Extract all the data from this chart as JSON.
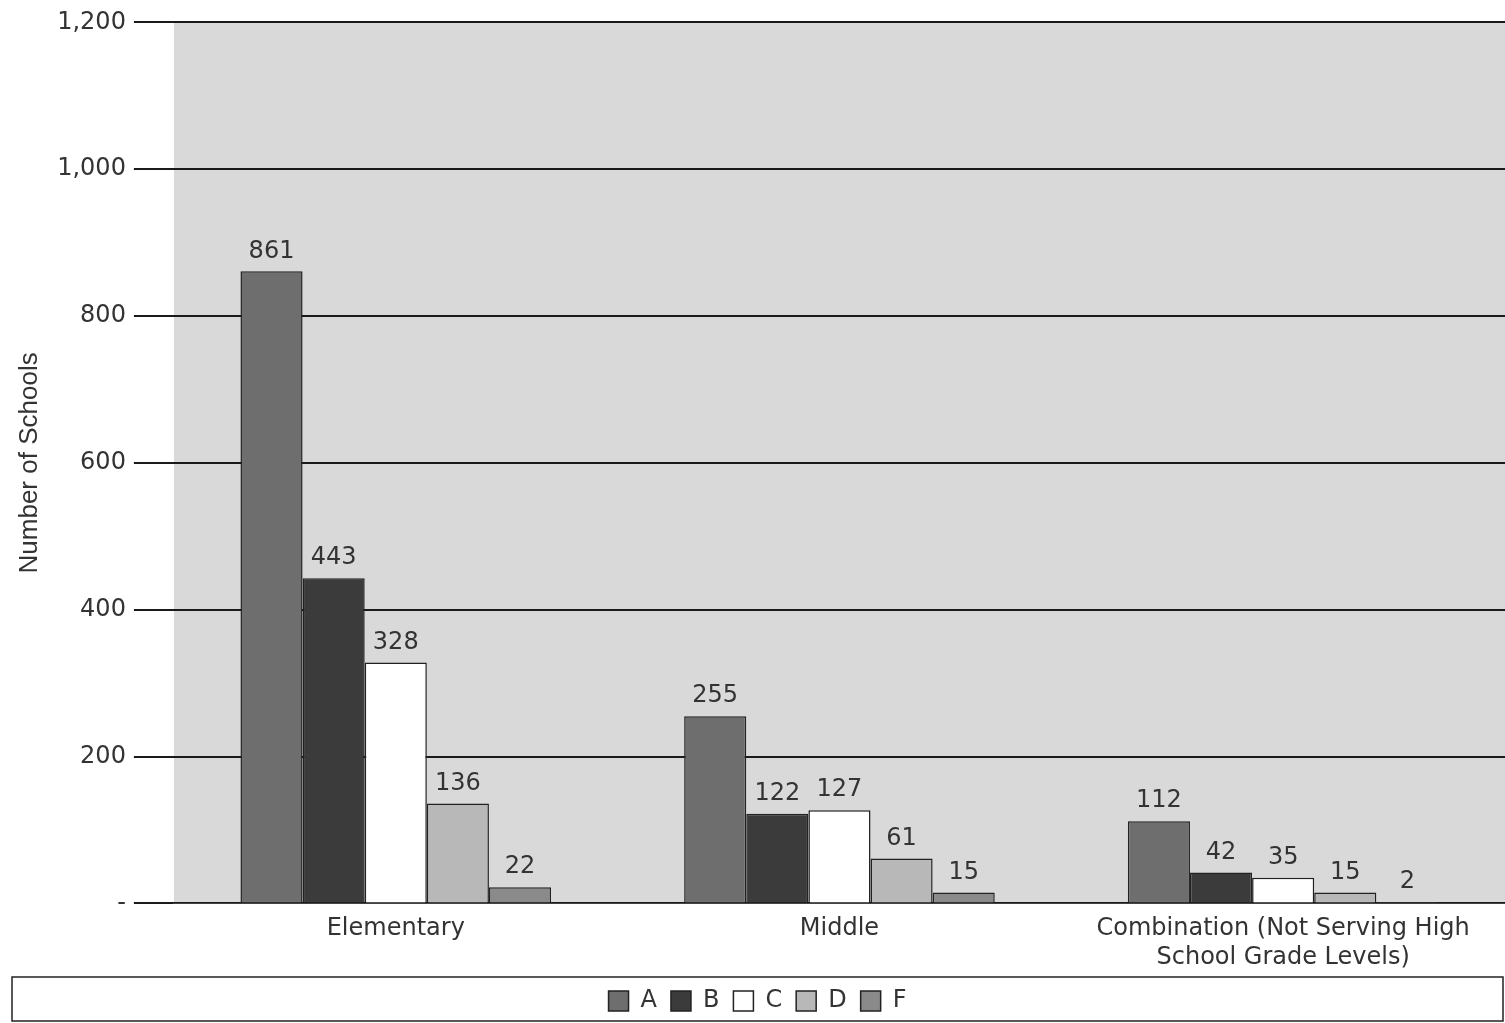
{
  "chart_data": {
    "type": "bar",
    "ylabel": "Number of Schools",
    "categories": [
      "Elementary",
      "Middle",
      "Combination (Not Serving High School Grade Levels)"
    ],
    "series": [
      {
        "name": "A",
        "color": "#6e6e6e",
        "values": [
          861,
          255,
          112
        ]
      },
      {
        "name": "B",
        "color": "#3b3b3b",
        "values": [
          443,
          122,
          42
        ]
      },
      {
        "name": "C",
        "color": "#ffffff",
        "values": [
          328,
          127,
          35
        ]
      },
      {
        "name": "D",
        "color": "#b8b8b8",
        "values": [
          136,
          61,
          15
        ]
      },
      {
        "name": "F",
        "color": "#8a8a8a",
        "values": [
          22,
          15,
          2
        ]
      }
    ],
    "ylim": [
      0,
      1200
    ],
    "yticks": [
      {
        "value": 0,
        "label": "-"
      },
      200,
      400,
      600,
      800,
      {
        "value": 1000,
        "label": "1,000"
      },
      {
        "value": 1200,
        "label": "1,200"
      }
    ],
    "grid": "y",
    "legend": "bottom",
    "data_labels": true
  }
}
